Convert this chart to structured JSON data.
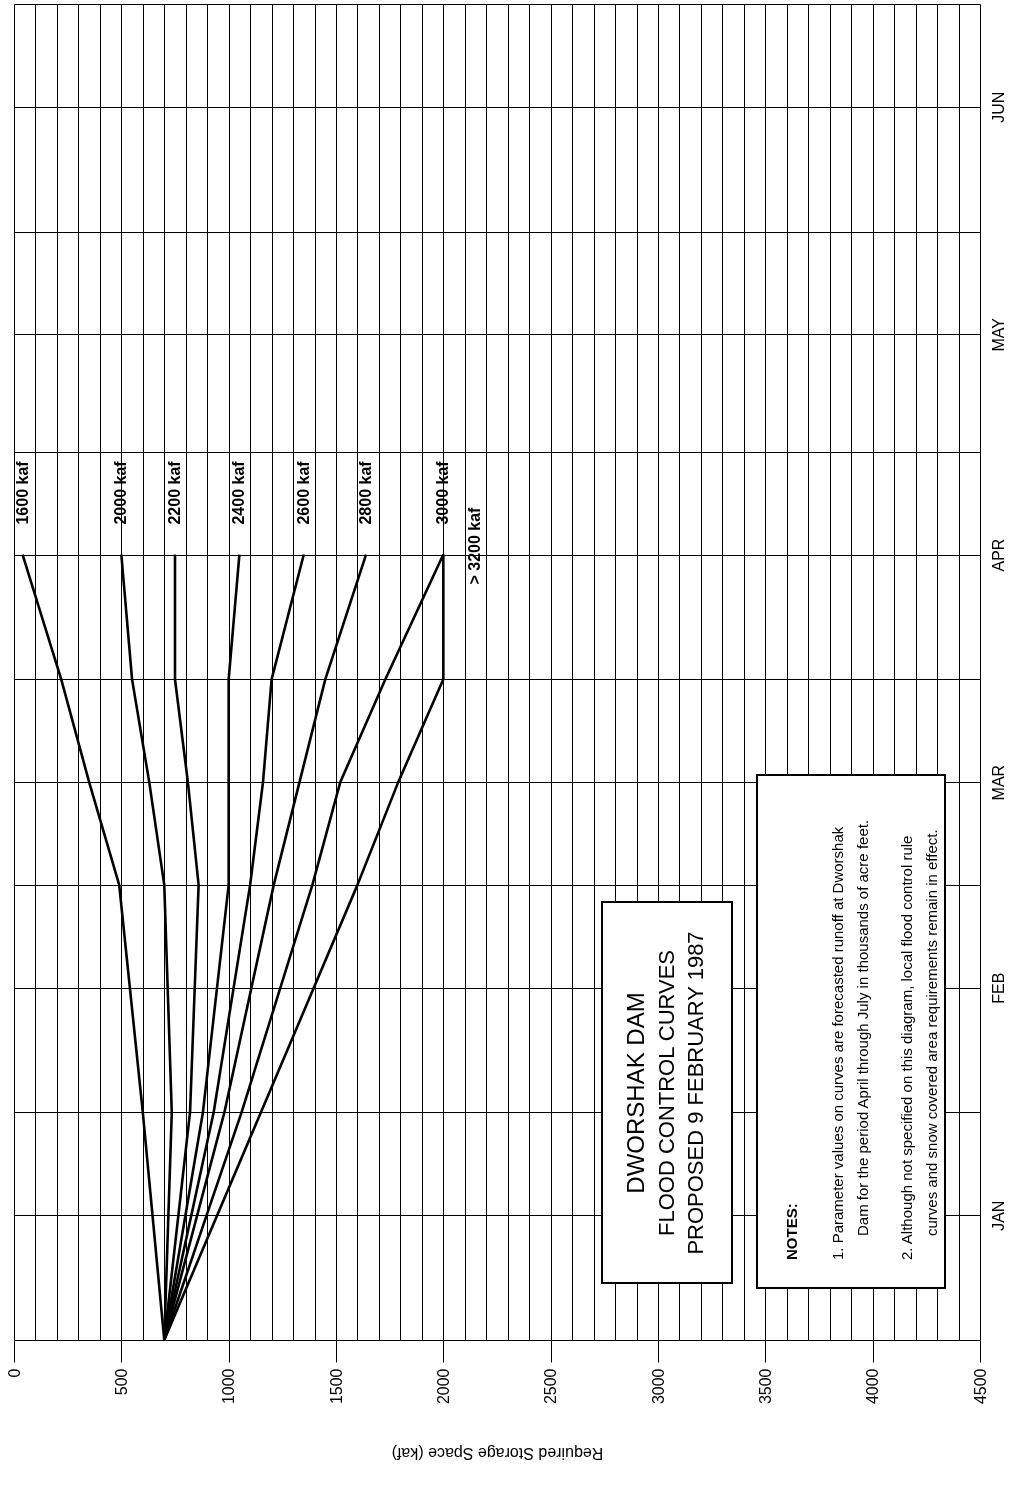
{
  "chart_data": {
    "type": "line",
    "orientation": "horizontal",
    "title": "DWORSHAK DAM",
    "subtitle": "FLOOD CONTROL CURVES\nPROPOSED 9 FEBRUARY 1987",
    "xlabel": "Required Storage Space (kaf)",
    "x": [
      "1986-12-15",
      "1987-01-15",
      "1987-02-15",
      "1987-03-01",
      "1987-03-15",
      "1987-04-01"
    ],
    "series": [
      {
        "name": "1600 kaf",
        "color": "#000000",
        "values": [
          700,
          600,
          490,
          350,
          220,
          40
        ]
      },
      {
        "name": "2000 kaf",
        "color": "#000000",
        "values": [
          700,
          735,
          700,
          630,
          550,
          500
        ]
      },
      {
        "name": "2200 kaf",
        "color": "#000000",
        "values": [
          700,
          820,
          860,
          810,
          750,
          750
        ]
      },
      {
        "name": "2400 kaf",
        "color": "#000000",
        "values": [
          700,
          880,
          1000,
          1000,
          1000,
          1050
        ]
      },
      {
        "name": "2600 kaf",
        "color": "#000000",
        "values": [
          700,
          930,
          1100,
          1160,
          1200,
          1350
        ]
      },
      {
        "name": "2800 kaf",
        "color": "#000000",
        "values": [
          700,
          980,
          1210,
          1330,
          1450,
          1640
        ]
      },
      {
        "name": "3000 kaf",
        "color": "#000000",
        "values": [
          700,
          1060,
          1390,
          1520,
          1730,
          2000
        ]
      },
      {
        "name": "> 3200 kaf",
        "color": "#000000",
        "values": [
          700,
          1150,
          1600,
          1790,
          2000,
          2000
        ]
      }
    ],
    "xlim": [
      0,
      4500
    ],
    "xticks": [
      0,
      {
        "value": 100,
        "label": null
      },
      {
        "value": 200,
        "label": null
      },
      {
        "value": 300,
        "label": null
      },
      {
        "value": 400,
        "label": null
      },
      500,
      {
        "value": 600,
        "label": null
      },
      {
        "value": 700,
        "label": null
      },
      {
        "value": 800,
        "label": null
      },
      {
        "value": 900,
        "label": null
      },
      1000,
      {
        "value": 1100,
        "label": null
      },
      {
        "value": 1200,
        "label": null
      },
      {
        "value": 1300,
        "label": null
      },
      {
        "value": 1400,
        "label": null
      },
      1500,
      {
        "value": 1600,
        "label": null
      },
      {
        "value": 1700,
        "label": null
      },
      {
        "value": 1800,
        "label": null
      },
      {
        "value": 1900,
        "label": null
      },
      2000,
      {
        "value": 2100,
        "label": null
      },
      {
        "value": 2200,
        "label": null
      },
      {
        "value": 2300,
        "label": null
      },
      {
        "value": 2400,
        "label": null
      },
      2500,
      {
        "value": 2600,
        "label": null
      },
      {
        "value": 2700,
        "label": null
      },
      {
        "value": 2800,
        "label": null
      },
      {
        "value": 2900,
        "label": null
      },
      3000,
      {
        "value": 3100,
        "label": null
      },
      {
        "value": 3200,
        "label": null
      },
      {
        "value": 3300,
        "label": null
      },
      {
        "value": 3400,
        "label": null
      },
      3500,
      {
        "value": 3600,
        "label": null
      },
      {
        "value": 3700,
        "label": null
      },
      {
        "value": 3800,
        "label": null
      },
      {
        "value": 3900,
        "label": null
      },
      4000,
      {
        "value": 4100,
        "label": null
      },
      {
        "value": 4200,
        "label": null
      },
      {
        "value": 4300,
        "label": null
      },
      {
        "value": 4400,
        "label": null
      },
      4500
    ],
    "ylim": [
      "1986-12-15",
      "1987-06-15"
    ],
    "yticks": [
      {
        "value": "1986-12-15",
        "label": null
      },
      {
        "value": "1987-01-01",
        "label": "JAN"
      },
      {
        "value": "1987-01-15",
        "label": null
      },
      {
        "value": "1987-02-01",
        "label": "FEB"
      },
      {
        "value": "1987-02-15",
        "label": null
      },
      {
        "value": "1987-03-01",
        "label": "MAR"
      },
      {
        "value": "1987-03-15",
        "label": null
      },
      {
        "value": "1987-04-01",
        "label": "APR"
      },
      {
        "value": "1987-04-15",
        "label": null
      },
      {
        "value": "1987-05-01",
        "label": "MAY"
      },
      {
        "value": "1987-05-15",
        "label": null
      },
      {
        "value": "1987-06-01",
        "label": "JUN"
      },
      {
        "value": "1987-06-15",
        "label": null
      }
    ],
    "grid": true,
    "annotations": [
      "NOTES:",
      "1.  Parameter values on curves are forecasted runoff at Dworshak\nDam for the period April through July in thousands of acre feet.",
      "2.  Although not specified on this diagram, local flood control rule\ncurves and snow covered area requirements remain in effect."
    ]
  }
}
